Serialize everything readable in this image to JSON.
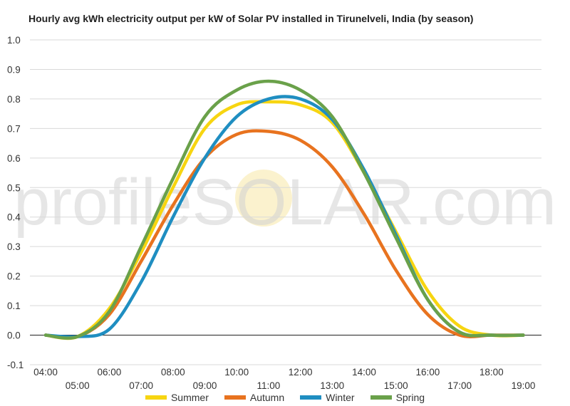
{
  "chart_data": {
    "type": "line",
    "title": "Hourly avg kWh electricity output per kW of Solar PV installed in Tirunelveli, India (by season)",
    "xlabel": "",
    "ylabel": "",
    "ylim": [
      -0.1,
      1.0
    ],
    "yticks": [
      "-0.1",
      "0.0",
      "0.1",
      "0.2",
      "0.3",
      "0.4",
      "0.5",
      "0.6",
      "0.7",
      "0.8",
      "0.9",
      "1.0"
    ],
    "categories": [
      "04:00",
      "05:00",
      "06:00",
      "07:00",
      "08:00",
      "09:00",
      "10:00",
      "11:00",
      "12:00",
      "13:00",
      "14:00",
      "15:00",
      "16:00",
      "17:00",
      "18:00",
      "19:00"
    ],
    "grid": true,
    "legend_position": "bottom",
    "series": [
      {
        "name": "Summer",
        "color": "#f7d511",
        "values": [
          0.0,
          -0.005,
          0.09,
          0.28,
          0.5,
          0.7,
          0.78,
          0.79,
          0.78,
          0.72,
          0.55,
          0.35,
          0.15,
          0.03,
          0.0,
          0.0
        ]
      },
      {
        "name": "Autumn",
        "color": "#e8731f",
        "values": [
          0.0,
          -0.005,
          0.07,
          0.25,
          0.44,
          0.6,
          0.68,
          0.69,
          0.66,
          0.57,
          0.41,
          0.22,
          0.07,
          0.0,
          0.0,
          0.0
        ]
      },
      {
        "name": "Winter",
        "color": "#1f8ec1",
        "values": [
          0.0,
          -0.005,
          0.02,
          0.18,
          0.4,
          0.6,
          0.74,
          0.8,
          0.8,
          0.73,
          0.56,
          0.34,
          0.12,
          0.01,
          0.0,
          0.0
        ]
      },
      {
        "name": "Spring",
        "color": "#6aa14a",
        "values": [
          0.0,
          -0.005,
          0.08,
          0.3,
          0.53,
          0.74,
          0.83,
          0.86,
          0.83,
          0.74,
          0.55,
          0.33,
          0.12,
          0.01,
          0.0,
          0.0
        ]
      }
    ]
  },
  "watermark": "profileSOLAR.com"
}
